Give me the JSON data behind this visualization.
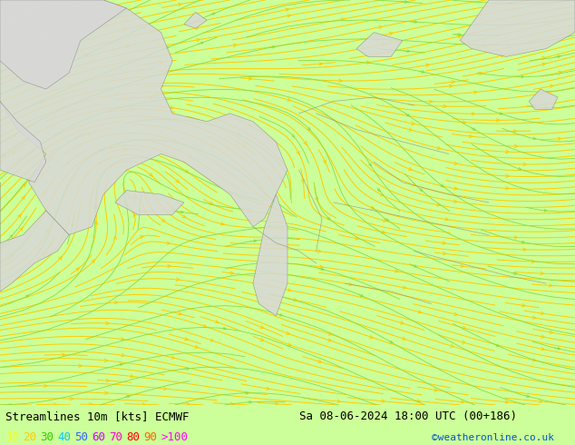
{
  "title_left": "Streamlines 10m [kts] ECMWF",
  "title_right": "Sa 08-06-2024 18:00 UTC (00+186)",
  "credit": "©weatheronline.co.uk",
  "bg_color": "#ccff99",
  "land_gray": "#d8d8d8",
  "border_color": "#888888",
  "stream_color_yellow": "#ffcc00",
  "stream_color_green": "#88dd44",
  "legend_labels": [
    "10",
    "20",
    "30",
    "40",
    "50",
    "60",
    "70",
    "80",
    "90",
    ">100"
  ],
  "legend_colors": [
    "#ffff00",
    "#ffcc00",
    "#33cc00",
    "#00ccff",
    "#3366ff",
    "#cc00ff",
    "#ff00cc",
    "#ff0000",
    "#ff6600",
    "#ff00ff"
  ],
  "title_fontsize": 9,
  "legend_fontsize": 9,
  "fig_width": 6.34,
  "fig_height": 4.9,
  "dpi": 100
}
